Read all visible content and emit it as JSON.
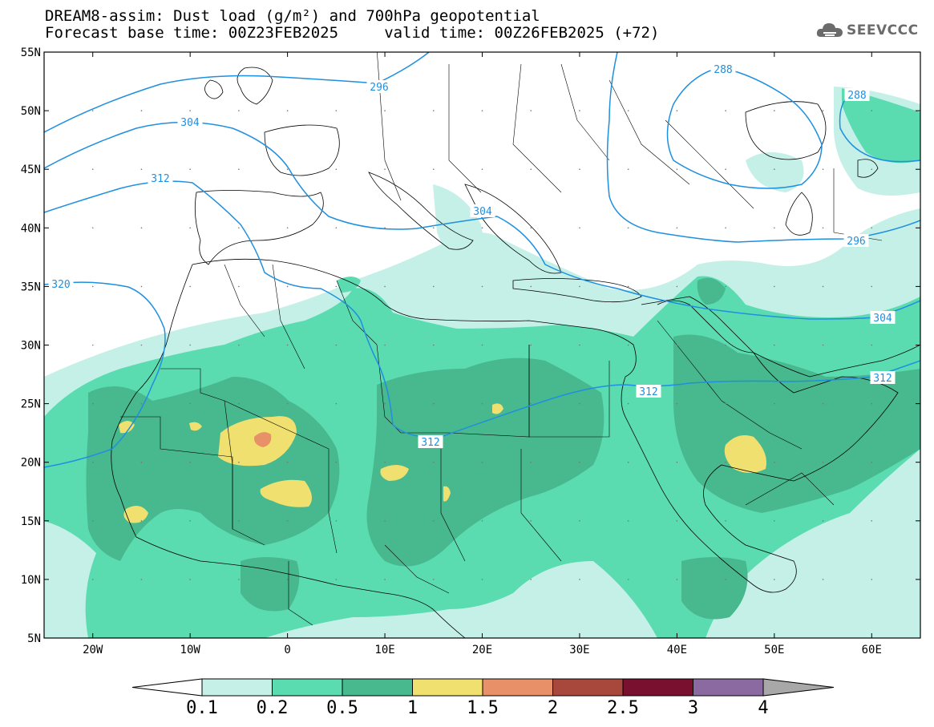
{
  "title": {
    "line1": "DREAM8-assim: Dust load (g/m²) and 700hPa geopotential",
    "line2": "Forecast base time: 00Z23FEB2025     valid time: 00Z26FEB2025 (+72)"
  },
  "logo": {
    "text": "SEEVCCC",
    "icon": "cloud-logo-icon"
  },
  "map": {
    "lon_range": [
      -25,
      65
    ],
    "lat_range": [
      5,
      55
    ],
    "lat_ticks": [
      "55N",
      "50N",
      "45N",
      "40N",
      "35N",
      "30N",
      "25N",
      "20N",
      "15N",
      "10N",
      "5N"
    ],
    "lon_ticks": [
      "20W",
      "10W",
      "0",
      "10E",
      "20E",
      "30E",
      "40E",
      "50E",
      "60E"
    ],
    "contour_labels": [
      "296",
      "288",
      "288",
      "304",
      "312",
      "304",
      "296",
      "320",
      "304",
      "312",
      "312",
      "312"
    ]
  },
  "colorbar": {
    "ticks": [
      "0.1",
      "0.2",
      "0.5",
      "1",
      "1.5",
      "2",
      "2.5",
      "3",
      "4"
    ],
    "colors": [
      "#c4f0e8",
      "#5bdbb0",
      "#48b88e",
      "#f0e070",
      "#e89068",
      "#a8483c",
      "#7a1030",
      "#8a6aa0",
      "#a8a8a8"
    ]
  },
  "colors": {
    "contour": "#1f8fe0",
    "coast": "#000000",
    "border": "#000000"
  }
}
